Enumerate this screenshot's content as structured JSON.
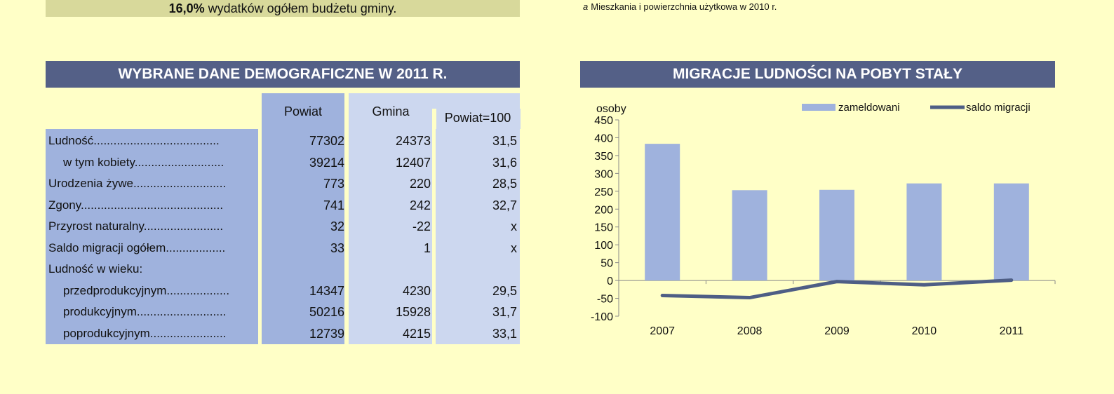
{
  "top_note": {
    "bold": "16,0%",
    "text": " wydatków ogółem budżetu gminy."
  },
  "footnote": {
    "marker": "a",
    "text": "Mieszkania i powierzchnia użytkowa w 2010 r."
  },
  "left_title": "WYBRANE DANE DEMOGRAFICZNE W 2011 R.",
  "right_title": "MIGRACJE LUDNOŚCI NA POBYT STAŁY",
  "table": {
    "headers": {
      "powiat": "Powiat",
      "gmina": "Gmina",
      "ratio": "Powiat=100"
    },
    "rows": [
      {
        "label": "Ludność......................................",
        "indent": false,
        "powiat": "77302",
        "gmina": "24373",
        "ratio": "31,5"
      },
      {
        "label": "w tym kobiety...........................",
        "indent": true,
        "powiat": "39214",
        "gmina": "12407",
        "ratio": "31,6"
      },
      {
        "label": "Urodzenia żywe............................",
        "indent": false,
        "powiat": "773",
        "gmina": "220",
        "ratio": "28,5"
      },
      {
        "label": "Zgony...........................................",
        "indent": false,
        "powiat": "741",
        "gmina": "242",
        "ratio": "32,7"
      },
      {
        "label": "Przyrost naturalny........................",
        "indent": false,
        "powiat": "32",
        "gmina": "-22",
        "ratio": "x"
      },
      {
        "label": "Saldo migracji ogółem..................",
        "indent": false,
        "powiat": "33",
        "gmina": "1",
        "ratio": "x"
      },
      {
        "label": "Ludność w wieku:",
        "indent": false,
        "powiat": "",
        "gmina": "",
        "ratio": ""
      },
      {
        "label": "przedprodukcyjnym...................",
        "indent": true,
        "powiat": "14347",
        "gmina": "4230",
        "ratio": "29,5"
      },
      {
        "label": "produkcyjnym...........................",
        "indent": true,
        "powiat": "50216",
        "gmina": "15928",
        "ratio": "31,7"
      },
      {
        "label": "poprodukcyjnym.......................",
        "indent": true,
        "powiat": "12739",
        "gmina": "4215",
        "ratio": "33,1"
      }
    ]
  },
  "colors": {
    "title_bg": "#546087",
    "label_col": "#9fb2dd",
    "powiat_col": "#9fb2dd",
    "gmina_col": "#ccd7ef",
    "bar": "#9fb2dd",
    "line": "#4e5e85",
    "page_bg": "#ffffc7"
  },
  "chart_data": {
    "type": "bar",
    "ylabel": "osoby",
    "ylim": [
      -100,
      450
    ],
    "yticks": [
      450,
      400,
      350,
      300,
      250,
      200,
      150,
      100,
      50,
      0,
      -50,
      -100
    ],
    "categories": [
      "2007",
      "2008",
      "2009",
      "2010",
      "2011"
    ],
    "series": [
      {
        "name": "zameldowani",
        "type": "bar",
        "values": [
          383,
          253,
          254,
          272,
          272
        ]
      },
      {
        "name": "saldo migracji",
        "type": "line",
        "values": [
          -42,
          -48,
          -3,
          -12,
          1
        ]
      }
    ],
    "legend": "top-right"
  }
}
